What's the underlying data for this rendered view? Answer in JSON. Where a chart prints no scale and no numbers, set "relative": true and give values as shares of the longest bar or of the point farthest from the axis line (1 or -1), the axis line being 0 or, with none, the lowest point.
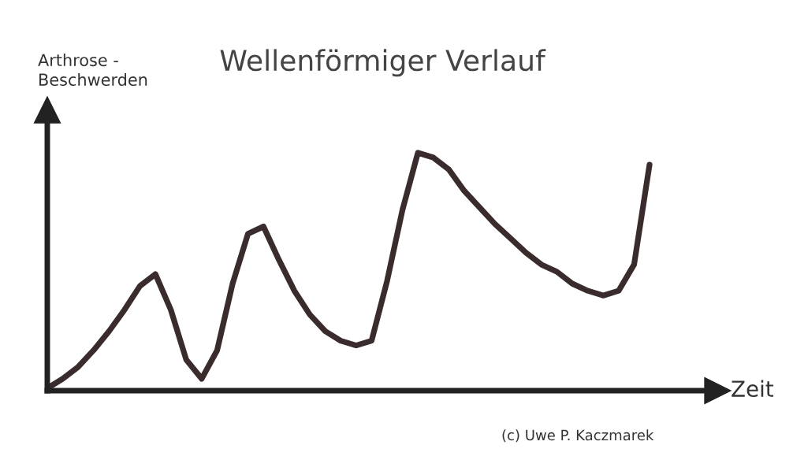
{
  "chart_data": {
    "type": "line",
    "title": "Wellenförmiger Verlauf",
    "xlabel": "Zeit",
    "ylabel": "Arthrose -\nBeschwerden",
    "relative": true,
    "grid": false,
    "marker": "none",
    "line_style": "solid",
    "categories": [
      null,
      null,
      null,
      null,
      null,
      null,
      null,
      null,
      null,
      null,
      null,
      null,
      null,
      null,
      null,
      null,
      null,
      null,
      null,
      null,
      null,
      null,
      null,
      null,
      null,
      null,
      null,
      null,
      null,
      null,
      null,
      null,
      null,
      null,
      null,
      null,
      null,
      null,
      null,
      null
    ],
    "series": [
      {
        "color": "#3a2c2c",
        "values": [
          0.01,
          0.05,
          0.1,
          0.17,
          0.25,
          0.34,
          0.44,
          0.49,
          0.34,
          0.13,
          0.05,
          0.17,
          0.45,
          0.66,
          0.69,
          0.55,
          0.42,
          0.32,
          0.25,
          0.21,
          0.19,
          0.21,
          0.46,
          0.76,
          1.0,
          0.98,
          0.93,
          0.84,
          0.77,
          0.7,
          0.64,
          0.58,
          0.53,
          0.5,
          0.45,
          0.42,
          0.4,
          0.42,
          0.53,
          0.95
        ]
      }
    ],
    "annotations": [
      "(c) Uwe P. Kaczmarek"
    ]
  }
}
